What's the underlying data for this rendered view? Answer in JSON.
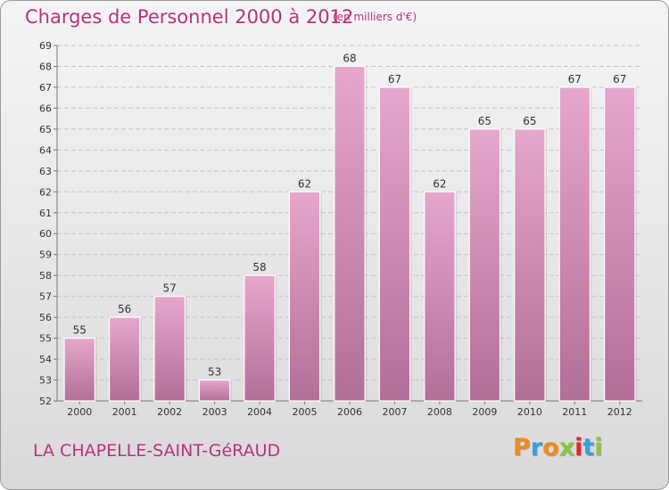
{
  "header": {
    "title": "Charges de Personnel 2000 à 2012",
    "subtitle": "(en milliers d'€)"
  },
  "footer": {
    "place": "LA CHAPELLE-SAINT-GéRAUD",
    "logo": "Proxiti",
    "logo_colors": [
      "#f08a1c",
      "#3aa0dc",
      "#f08a1c",
      "#8cc63f",
      "#e2272f",
      "#3aa0dc",
      "#8cc63f"
    ]
  },
  "colors": {
    "bar_top": "#e6a7cc",
    "bar_bottom": "#b26f97",
    "text_accent": "#b8327e"
  },
  "chart_data": {
    "type": "bar",
    "title": "Charges de Personnel 2000 à 2012",
    "subtitle": "(en milliers d'€)",
    "categories": [
      "2000",
      "2001",
      "2002",
      "2003",
      "2004",
      "2005",
      "2006",
      "2007",
      "2008",
      "2009",
      "2010",
      "2011",
      "2012"
    ],
    "values": [
      55,
      56,
      57,
      53,
      58,
      62,
      68,
      67,
      62,
      65,
      65,
      67,
      67
    ],
    "ylim": [
      52,
      69
    ],
    "yticks": [
      52,
      53,
      54,
      55,
      56,
      57,
      58,
      59,
      60,
      61,
      62,
      63,
      64,
      65,
      66,
      67,
      68,
      69
    ],
    "grid": true,
    "xlabel": "",
    "ylabel": ""
  }
}
